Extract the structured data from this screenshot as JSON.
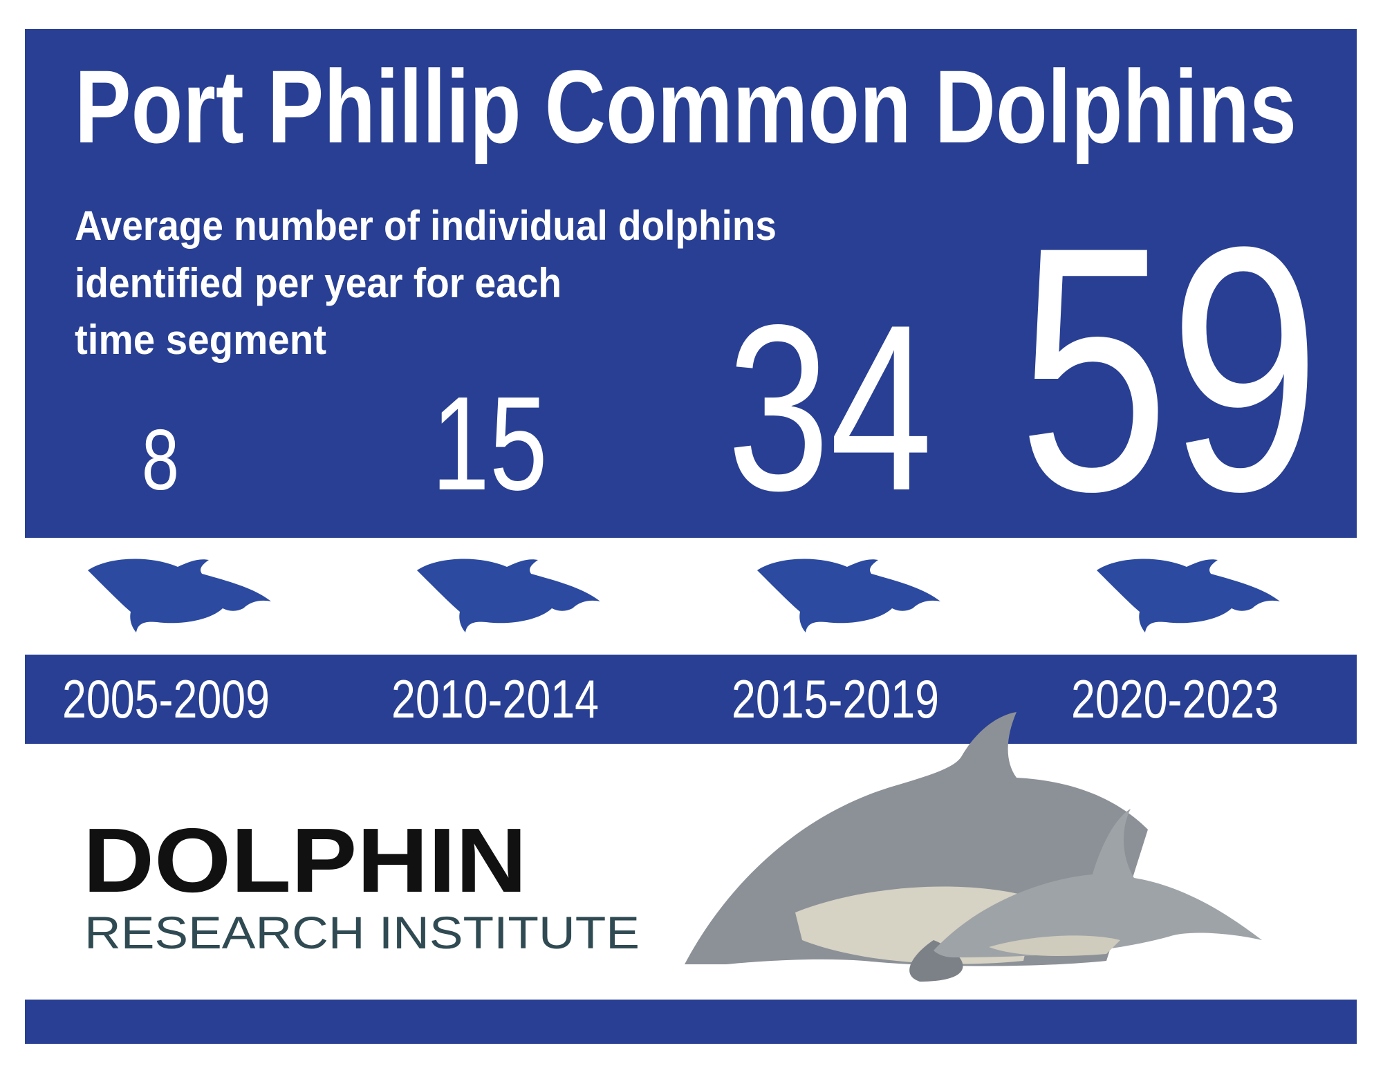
{
  "title": "Port Phillip Common Dolphins",
  "subtitle": [
    "Average number of individual dolphins",
    "identified per year for each",
    "time segment"
  ],
  "segments": [
    {
      "period": "2005-2009",
      "value": 8
    },
    {
      "period": "2010-2014",
      "value": 15
    },
    {
      "period": "2015-2019",
      "value": 34
    },
    {
      "period": "2020-2023",
      "value": 59
    }
  ],
  "logo": {
    "name": "DOLPHIN",
    "tagline": "RESEARCH INSTITUTE"
  }
}
